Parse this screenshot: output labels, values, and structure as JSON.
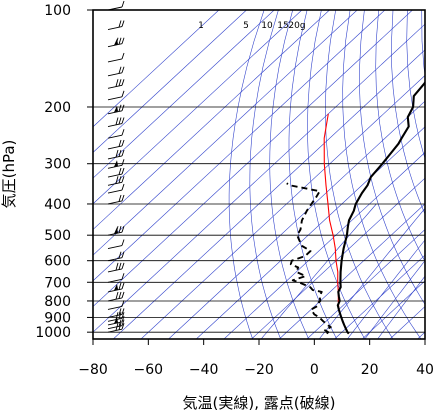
{
  "chart_data": {
    "type": "line",
    "subtype": "skew-t log-p thermodynamic diagram",
    "xlabel": "気温(実線), 露点(破線)",
    "ylabel": "気圧(hPa)",
    "xlim": [
      -80,
      40
    ],
    "ylim": [
      1050,
      100
    ],
    "y_scale": "log",
    "x_ticks": [
      -80,
      -60,
      -40,
      -20,
      0,
      20,
      40
    ],
    "x_tick_labels": [
      "−80",
      "−60",
      "−40",
      "−20",
      "0",
      "20",
      "40"
    ],
    "y_ticks": [
      100,
      200,
      300,
      400,
      500,
      600,
      700,
      800,
      900,
      1000
    ],
    "y_tick_labels": [
      "100",
      "200",
      "300",
      "400",
      "500",
      "600",
      "700",
      "800",
      "900",
      "1000"
    ],
    "mixing_ratio_labels": [
      "1",
      "5",
      "10",
      "15",
      "20g"
    ],
    "mixing_ratio_values": [
      1,
      5,
      10,
      15,
      20
    ],
    "grid": true,
    "colors": {
      "temperature": "#000000",
      "dewpoint": "#000000",
      "parcel": "#ff0000",
      "background_lines": "#3344cc",
      "grid": "#000000"
    },
    "series": [
      {
        "style": "solid",
        "points": [
          {
            "p": 1010,
            "t": 13
          },
          {
            "p": 1000,
            "t": 12
          },
          {
            "p": 975,
            "t": 10
          },
          {
            "p": 950,
            "t": 8
          },
          {
            "p": 925,
            "t": 6
          },
          {
            "p": 900,
            "t": 4
          },
          {
            "p": 875,
            "t": 2
          },
          {
            "p": 850,
            "t": 0
          },
          {
            "p": 825,
            "t": -2
          },
          {
            "p": 800,
            "t": -3
          },
          {
            "p": 775,
            "t": -5
          },
          {
            "p": 750,
            "t": -7
          },
          {
            "p": 725,
            "t": -8
          },
          {
            "p": 700,
            "t": -10
          },
          {
            "p": 650,
            "t": -14
          },
          {
            "p": 600,
            "t": -18
          },
          {
            "p": 550,
            "t": -22
          },
          {
            "p": 500,
            "t": -26
          },
          {
            "p": 470,
            "t": -29
          },
          {
            "p": 450,
            "t": -31
          },
          {
            "p": 420,
            "t": -33
          },
          {
            "p": 400,
            "t": -35
          },
          {
            "p": 370,
            "t": -37
          },
          {
            "p": 350,
            "t": -38
          },
          {
            "p": 330,
            "t": -40
          },
          {
            "p": 300,
            "t": -41
          },
          {
            "p": 280,
            "t": -42
          },
          {
            "p": 260,
            "t": -43
          },
          {
            "p": 250,
            "t": -44
          },
          {
            "p": 230,
            "t": -46
          },
          {
            "p": 215,
            "t": -50
          },
          {
            "p": 200,
            "t": -52
          },
          {
            "p": 185,
            "t": -56
          },
          {
            "p": 170,
            "t": -57
          },
          {
            "p": 160,
            "t": -58
          },
          {
            "p": 150,
            "t": -60
          },
          {
            "p": 140,
            "t": -61
          },
          {
            "p": 130,
            "t": -65
          },
          {
            "p": 120,
            "t": -66
          },
          {
            "p": 110,
            "t": -68
          },
          {
            "p": 100,
            "t": -69
          }
        ]
      },
      {
        "style": "dashed",
        "points": [
          {
            "p": 1010,
            "t": 5
          },
          {
            "p": 1000,
            "t": 5
          },
          {
            "p": 985,
            "t": 3
          },
          {
            "p": 965,
            "t": 4
          },
          {
            "p": 950,
            "t": 2
          },
          {
            "p": 925,
            "t": -1
          },
          {
            "p": 900,
            "t": -4
          },
          {
            "p": 880,
            "t": -7
          },
          {
            "p": 860,
            "t": -9
          },
          {
            "p": 850,
            "t": -10
          },
          {
            "p": 830,
            "t": -9
          },
          {
            "p": 810,
            "t": -10
          },
          {
            "p": 800,
            "t": -10
          },
          {
            "p": 775,
            "t": -12
          },
          {
            "p": 750,
            "t": -13
          },
          {
            "p": 740,
            "t": -17
          },
          {
            "p": 725,
            "t": -19
          },
          {
            "p": 700,
            "t": -25
          },
          {
            "p": 690,
            "t": -28
          },
          {
            "p": 670,
            "t": -25
          },
          {
            "p": 650,
            "t": -30
          },
          {
            "p": 630,
            "t": -31
          },
          {
            "p": 615,
            "t": -35
          },
          {
            "p": 600,
            "t": -36
          },
          {
            "p": 580,
            "t": -33
          },
          {
            "p": 560,
            "t": -33
          },
          {
            "p": 540,
            "t": -38
          },
          {
            "p": 520,
            "t": -41
          },
          {
            "p": 500,
            "t": -44
          },
          {
            "p": 480,
            "t": -45
          },
          {
            "p": 450,
            "t": -48
          },
          {
            "p": 420,
            "t": -50
          },
          {
            "p": 400,
            "t": -51
          },
          {
            "p": 380,
            "t": -52
          },
          {
            "p": 365,
            "t": -53
          },
          {
            "p": 350,
            "t": -66
          },
          {
            "p": 345,
            "t": -68
          }
        ]
      },
      {
        "style": "solid-red",
        "points": [
          {
            "p": 1010,
            "t": 13
          },
          {
            "p": 1000,
            "t": 12
          },
          {
            "p": 950,
            "t": 8
          },
          {
            "p": 900,
            "t": 4
          },
          {
            "p": 850,
            "t": 0
          },
          {
            "p": 800,
            "t": -3.5
          },
          {
            "p": 750,
            "t": -7
          },
          {
            "p": 700,
            "t": -11
          },
          {
            "p": 650,
            "t": -15
          },
          {
            "p": 600,
            "t": -20
          },
          {
            "p": 550,
            "t": -25
          },
          {
            "p": 500,
            "t": -31
          },
          {
            "p": 450,
            "t": -38
          },
          {
            "p": 400,
            "t": -45
          },
          {
            "p": 350,
            "t": -53
          },
          {
            "p": 300,
            "t": -62
          },
          {
            "p": 250,
            "t": -72
          },
          {
            "p": 210,
            "t": -80
          }
        ]
      }
    ]
  }
}
